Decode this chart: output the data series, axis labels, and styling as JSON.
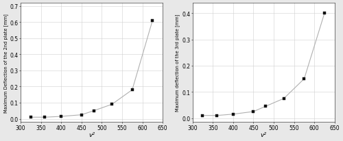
{
  "plot1": {
    "x": [
      325,
      360,
      400,
      450,
      480,
      525,
      575,
      625
    ],
    "y": [
      0.01,
      0.01,
      0.015,
      0.025,
      0.05,
      0.09,
      0.18,
      0.61
    ],
    "xlabel": "v²",
    "ylabel": "Maximum Deflection of the 2nd plate [mm]",
    "xlim": [
      300,
      650
    ],
    "ylim": [
      -0.02,
      0.72
    ],
    "yticks": [
      0.0,
      0.1,
      0.2,
      0.3,
      0.4,
      0.5,
      0.6,
      0.7
    ],
    "xticks": [
      300,
      350,
      400,
      450,
      500,
      550,
      600,
      650
    ]
  },
  "plot2": {
    "x": [
      325,
      360,
      400,
      450,
      480,
      525,
      575,
      625
    ],
    "y": [
      0.01,
      0.01,
      0.015,
      0.025,
      0.045,
      0.075,
      0.15,
      0.4
    ],
    "xlabel": "v²",
    "ylabel": "Maximum deflection of the 3rd plate [mm]",
    "xlim": [
      300,
      650
    ],
    "ylim": [
      -0.015,
      0.44
    ],
    "yticks": [
      0.0,
      0.1,
      0.2,
      0.3,
      0.4
    ],
    "xticks": [
      300,
      350,
      400,
      450,
      500,
      550,
      600,
      650
    ]
  },
  "line_color": "#b0b0b0",
  "marker_color": "#111111",
  "grid_color": "#d0d0d0",
  "background_color": "#ffffff",
  "fig_facecolor": "#e8e8e8"
}
